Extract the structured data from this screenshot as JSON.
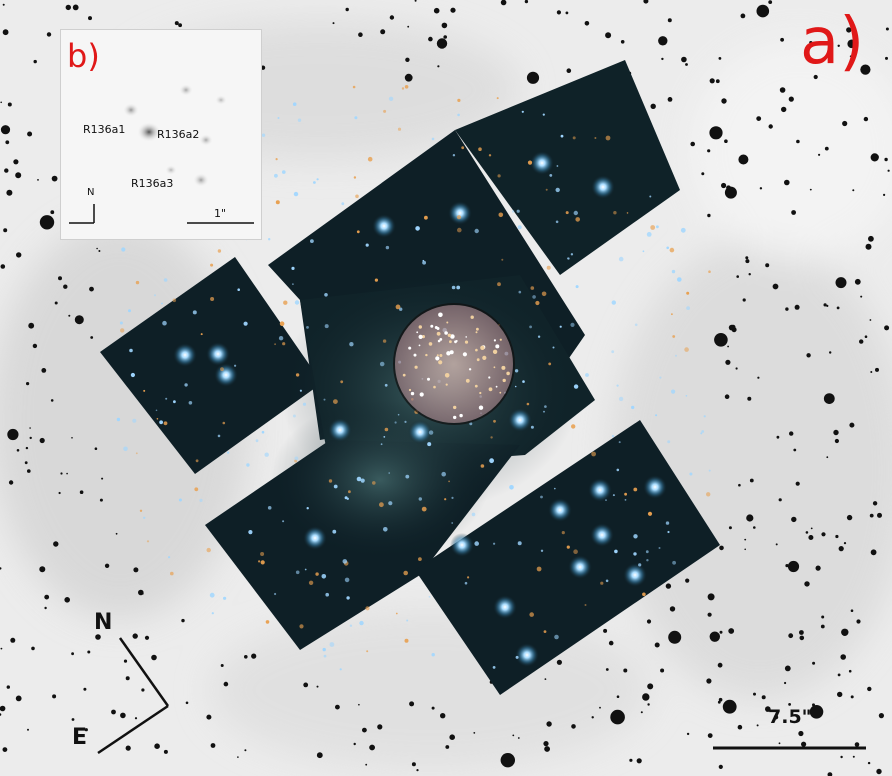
{
  "panel_a_label": "a)",
  "inset": {
    "panel_label": "b)",
    "stars": [
      "R136a1",
      "R136a2",
      "R136a3"
    ],
    "north_label": "N",
    "scale_label": "1\""
  },
  "compass": {
    "north": "N",
    "east": "E"
  },
  "scale_bar_label": "7.5\"",
  "colors": {
    "label_red": "#e01818",
    "mosaic_dark": "#0e1f26",
    "star_blue": "#9fd6ff",
    "star_orange": "#e8a050",
    "circle_fill": "#c8a0a0"
  }
}
